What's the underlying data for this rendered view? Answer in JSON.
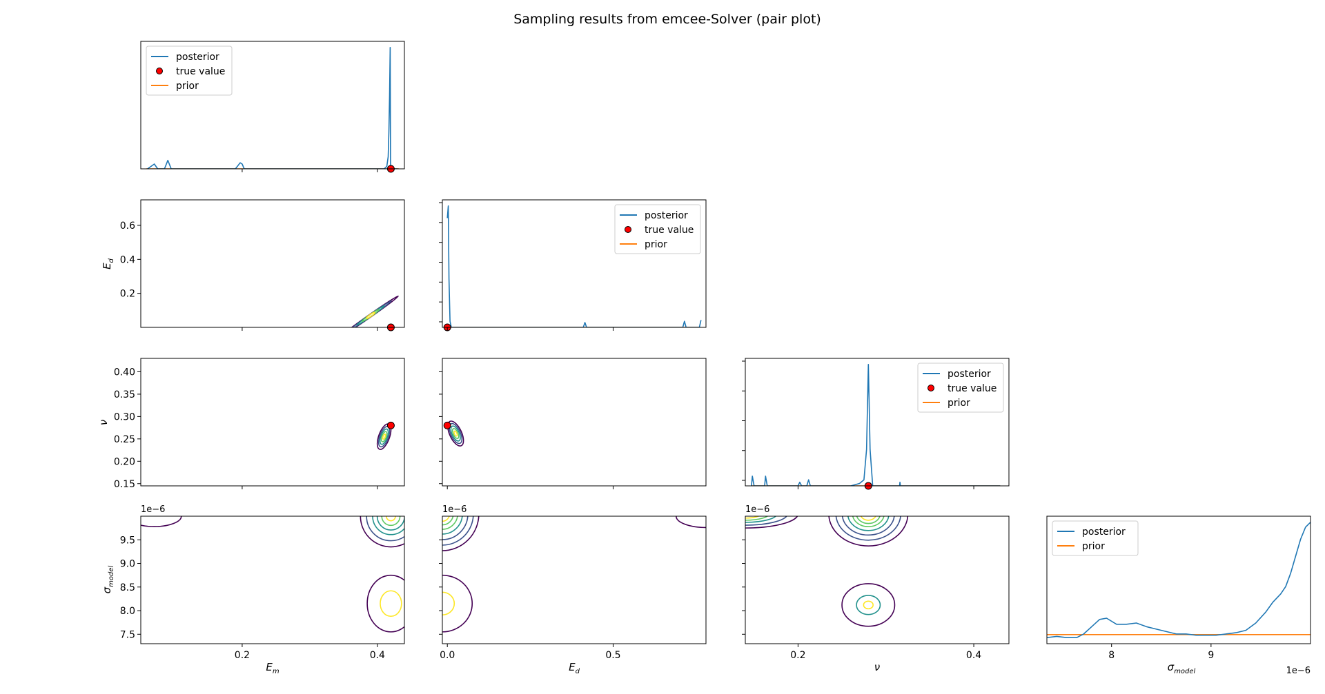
{
  "figure": {
    "title": "Sampling results from emcee-Solver (pair plot)"
  },
  "colors": {
    "posterior": "#1f77b4",
    "prior": "#ff7f0e",
    "true_value": "#ff0000",
    "contour_levels": [
      "#440154",
      "#3b528b",
      "#21918c",
      "#5ec962",
      "#fde725"
    ]
  },
  "legend": {
    "posterior": "posterior",
    "true_value": "true value",
    "prior": "prior"
  },
  "axis_labels": {
    "E_m": {
      "base": "E",
      "sub": "m"
    },
    "E_d": {
      "base": "E",
      "sub": "d"
    },
    "nu": {
      "base": "ν",
      "sub": ""
    },
    "sigma": {
      "base": "σ",
      "sub": "model"
    }
  },
  "offset_text": "1e−6",
  "chart_data": [
    {
      "type": "line",
      "panel": "marginal E_m",
      "xlim": [
        0.05,
        0.44
      ],
      "ylim": [
        0,
        1.05
      ],
      "legend_position": "upper-left",
      "series": [
        {
          "name": "posterior",
          "x": [
            0.06,
            0.07,
            0.075,
            0.085,
            0.09,
            0.095,
            0.12,
            0.19,
            0.197,
            0.2,
            0.203,
            0.25,
            0.3,
            0.35,
            0.4,
            0.41,
            0.414,
            0.416,
            0.417,
            0.418,
            0.419,
            0.4195,
            0.42,
            0.43
          ],
          "y": [
            0.0,
            0.04,
            0.0,
            0.0,
            0.07,
            0.0,
            0.0,
            0.0,
            0.05,
            0.04,
            0.0,
            0.0,
            0.0,
            0.0,
            0.0,
            0.0,
            0.02,
            0.1,
            0.3,
            0.6,
            1.0,
            0.05,
            0.0,
            0.0
          ]
        },
        {
          "name": "prior",
          "x": [
            0.058,
            0.432
          ],
          "y": [
            0.0,
            0.0
          ]
        }
      ],
      "true_value": [
        0.42,
        0.0
      ]
    },
    {
      "type": "line",
      "panel": "marginal E_d",
      "xlim": [
        -0.015,
        0.78
      ],
      "ylim": [
        0,
        1.05
      ],
      "legend_position": "upper-right",
      "x_ticks": [
        0.0,
        0.5
      ],
      "series": [
        {
          "name": "posterior",
          "x": [
            0.0,
            0.003,
            0.005,
            0.008,
            0.012,
            0.02,
            0.1,
            0.3,
            0.41,
            0.415,
            0.42,
            0.5,
            0.6,
            0.71,
            0.715,
            0.72,
            0.75,
            0.76,
            0.765
          ],
          "y": [
            0.9,
            1.0,
            0.4,
            0.05,
            0.0,
            0.0,
            0.0,
            0.0,
            0.0,
            0.04,
            0.0,
            0.0,
            0.0,
            0.0,
            0.05,
            0.0,
            0.0,
            0.0,
            0.06
          ]
        },
        {
          "name": "prior",
          "x": [
            0.0,
            0.76
          ],
          "y": [
            0.0,
            0.0
          ]
        }
      ],
      "true_value": [
        0.0,
        0.0
      ]
    },
    {
      "type": "line",
      "panel": "marginal nu",
      "xlim": [
        0.14,
        0.44
      ],
      "ylim": [
        0,
        1.05
      ],
      "legend_position": "upper-right",
      "x_ticks": [
        0.2,
        0.4
      ],
      "series": [
        {
          "name": "posterior",
          "x": [
            0.147,
            0.148,
            0.15,
            0.155,
            0.162,
            0.163,
            0.165,
            0.2,
            0.202,
            0.204,
            0.21,
            0.212,
            0.214,
            0.26,
            0.27,
            0.275,
            0.278,
            0.28,
            0.282,
            0.285,
            0.29,
            0.3,
            0.3155,
            0.316,
            0.3165,
            0.35,
            0.43
          ],
          "y": [
            0.0,
            0.08,
            0.0,
            0.0,
            0.0,
            0.08,
            0.0,
            0.0,
            0.03,
            0.0,
            0.0,
            0.05,
            0.0,
            0.0,
            0.02,
            0.05,
            0.3,
            1.0,
            0.3,
            0.0,
            0.0,
            0.0,
            0.0,
            0.03,
            0.0,
            0.0,
            0.0
          ]
        },
        {
          "name": "prior",
          "x": [
            0.147,
            0.43
          ],
          "y": [
            0.0,
            0.0
          ]
        }
      ],
      "true_value": [
        0.28,
        0.0
      ]
    },
    {
      "type": "line",
      "panel": "marginal sigma_model (x in units of 1e-6)",
      "xlim": [
        7.35,
        10.0
      ],
      "ylim": [
        0,
        1.05
      ],
      "legend_position": "upper-left",
      "x_ticks": [
        8,
        9
      ],
      "series": [
        {
          "name": "posterior",
          "x": [
            7.35,
            7.45,
            7.55,
            7.65,
            7.72,
            7.8,
            7.88,
            7.95,
            8.05,
            8.15,
            8.25,
            8.35,
            8.45,
            8.55,
            8.65,
            8.75,
            8.85,
            8.95,
            9.05,
            9.15,
            9.25,
            9.35,
            9.45,
            9.55,
            9.62,
            9.7,
            9.75,
            9.8,
            9.85,
            9.9,
            9.95,
            10.0
          ],
          "y": [
            0.05,
            0.06,
            0.05,
            0.05,
            0.08,
            0.14,
            0.2,
            0.21,
            0.16,
            0.16,
            0.17,
            0.14,
            0.12,
            0.1,
            0.08,
            0.08,
            0.07,
            0.07,
            0.07,
            0.08,
            0.09,
            0.11,
            0.17,
            0.26,
            0.34,
            0.41,
            0.47,
            0.58,
            0.72,
            0.86,
            0.96,
            1.0
          ]
        },
        {
          "name": "prior",
          "x": [
            7.35,
            10.0
          ],
          "y": [
            0.075,
            0.075
          ]
        }
      ]
    },
    {
      "type": "contour",
      "panel": "E_d vs E_m",
      "xlim": [
        0.05,
        0.44
      ],
      "ylim": [
        0.0,
        0.75
      ],
      "x_ticks": [
        0.2,
        0.4
      ],
      "y_ticks": [
        0.2,
        0.4,
        0.6
      ],
      "true_value": [
        0.42,
        0.0
      ],
      "blobs": [
        {
          "cx": 0.39,
          "cy": 0.07,
          "rx": 0.05,
          "ry": 0.008,
          "angle": -35,
          "levels": [
            1.0,
            0.75,
            0.5,
            0.3,
            0.15
          ]
        }
      ]
    },
    {
      "type": "contour",
      "panel": "nu vs E_m",
      "xlim": [
        0.05,
        0.44
      ],
      "ylim": [
        0.145,
        0.43
      ],
      "x_ticks": [
        0.2,
        0.4
      ],
      "y_ticks": [
        0.15,
        0.2,
        0.25,
        0.3,
        0.35,
        0.4
      ],
      "true_value": [
        0.42,
        0.28
      ],
      "blobs": [
        {
          "cx": 0.41,
          "cy": 0.255,
          "rx": 0.008,
          "ry": 0.03,
          "angle": 20,
          "levels": [
            1.0,
            0.8,
            0.6,
            0.4,
            0.2
          ]
        }
      ]
    },
    {
      "type": "contour",
      "panel": "nu vs E_d",
      "xlim": [
        -0.015,
        0.78
      ],
      "ylim": [
        0.145,
        0.43
      ],
      "x_ticks": [
        0.0,
        0.5
      ],
      "true_value": [
        0.0,
        0.28
      ],
      "blobs": [
        {
          "cx": 0.025,
          "cy": 0.262,
          "rx": 0.018,
          "ry": 0.03,
          "angle": -25,
          "levels": [
            1.0,
            0.8,
            0.6,
            0.4,
            0.2
          ]
        }
      ]
    },
    {
      "type": "contour",
      "panel": "sigma_model vs E_m (y in units of 1e-6)",
      "xlim": [
        0.05,
        0.44
      ],
      "ylim": [
        7.3,
        10.0
      ],
      "x_ticks": [
        0.2,
        0.4
      ],
      "y_ticks": [
        7.5,
        8.0,
        8.5,
        9.0,
        9.5
      ],
      "blobs": [
        {
          "cx": 0.42,
          "cy": 10.0,
          "rx": 0.045,
          "ry": 0.65,
          "angle": 0,
          "levels": [
            1.0,
            0.8,
            0.6,
            0.45,
            0.3,
            0.15
          ]
        },
        {
          "cx": 0.42,
          "cy": 8.15,
          "rx": 0.035,
          "ry": 0.6,
          "angle": 0,
          "levels": [
            1.0,
            0.45
          ]
        },
        {
          "cx": 0.07,
          "cy": 10.0,
          "rx": 0.04,
          "ry": 0.22,
          "angle": 0,
          "levels": [
            1.0
          ]
        }
      ]
    },
    {
      "type": "contour",
      "panel": "sigma_model vs E_d (y in units of 1e-6)",
      "xlim": [
        -0.015,
        0.78
      ],
      "ylim": [
        7.3,
        10.0
      ],
      "x_ticks": [
        0.0,
        0.5
      ],
      "blobs": [
        {
          "cx": -0.015,
          "cy": 10.05,
          "rx": 0.11,
          "ry": 0.78,
          "angle": 0,
          "levels": [
            1.0,
            0.85,
            0.7,
            0.55,
            0.42,
            0.3,
            0.2
          ]
        },
        {
          "cx": -0.015,
          "cy": 8.15,
          "rx": 0.09,
          "ry": 0.6,
          "angle": 0,
          "levels": [
            1.0,
            0.4
          ]
        },
        {
          "cx": 0.78,
          "cy": 10.0,
          "rx": 0.09,
          "ry": 0.24,
          "angle": 0,
          "levels": [
            1.0
          ]
        }
      ]
    },
    {
      "type": "contour",
      "panel": "sigma_model vs nu (y in units of 1e-6)",
      "xlim": [
        0.14,
        0.44
      ],
      "ylim": [
        7.3,
        10.0
      ],
      "x_ticks": [
        0.2,
        0.4
      ],
      "blobs": [
        {
          "cx": 0.28,
          "cy": 10.05,
          "rx": 0.045,
          "ry": 0.68,
          "angle": 0,
          "levels": [
            1.0,
            0.82,
            0.66,
            0.52,
            0.4,
            0.3,
            0.2
          ]
        },
        {
          "cx": 0.28,
          "cy": 8.12,
          "rx": 0.03,
          "ry": 0.45,
          "angle": 0,
          "levels": [
            1.0,
            0.45,
            0.18
          ]
        },
        {
          "cx": 0.14,
          "cy": 10.05,
          "rx": 0.06,
          "ry": 0.3,
          "angle": 0,
          "levels": [
            1.0,
            0.8,
            0.6,
            0.45,
            0.3
          ]
        }
      ]
    }
  ]
}
